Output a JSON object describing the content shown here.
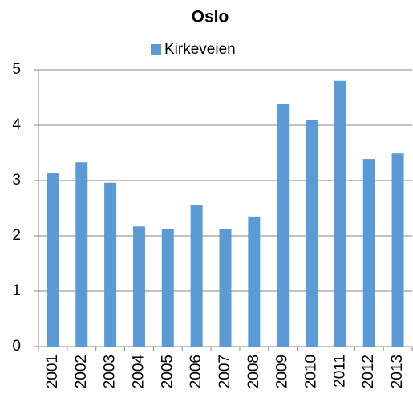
{
  "chart_data": {
    "type": "bar",
    "title": "Oslo",
    "series": [
      {
        "name": "Kirkeveien",
        "color": "#5b9bd5",
        "values": [
          3.13,
          3.33,
          2.96,
          2.17,
          2.12,
          2.55,
          2.13,
          2.35,
          4.39,
          4.09,
          4.8,
          3.39,
          3.49
        ]
      }
    ],
    "categories": [
      "2001",
      "2002",
      "2003",
      "2004",
      "2005",
      "2006",
      "2007",
      "2008",
      "2009",
      "2010",
      "2011",
      "2012",
      "2013"
    ],
    "ylim": [
      0,
      5
    ],
    "yticks": [
      0,
      1,
      2,
      3,
      4,
      5
    ],
    "grid": true,
    "legend": "top"
  }
}
